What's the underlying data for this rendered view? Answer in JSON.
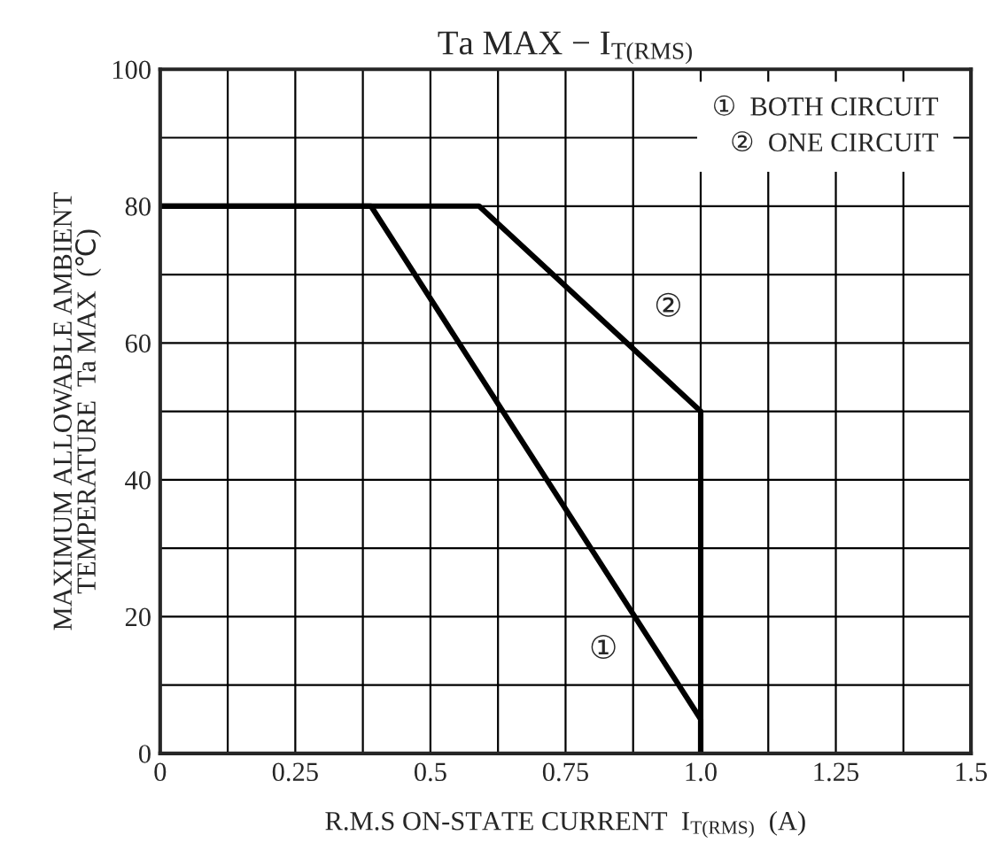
{
  "chart_data": {
    "type": "line",
    "title": "Ta MAX − I$_{T(RMS)}$",
    "xlabel": "R.M.S ON-STATE CURRENT  I$_{T(RMS)}$  (A)",
    "ylabel": "MAXIMUM ALLOWABLE AMBIENT\nTEMPERATURE  Ta MAX  (℃)",
    "series": [
      {
        "color": "#000000",
        "x": [
          0,
          0.39,
          1.0,
          1.0
        ],
        "values": [
          80,
          80,
          5,
          0
        ]
      },
      {
        "color": "#000000",
        "x": [
          0,
          0.59,
          1.0,
          1.0
        ],
        "values": [
          80,
          80,
          50,
          0
        ]
      }
    ],
    "annotations": [
      {
        "text": "①",
        "x": 0.82,
        "y": 15
      },
      {
        "text": "②",
        "x": 0.94,
        "y": 65
      },
      "①  BOTH CIRCUIT\n②  ONE CIRCUIT"
    ],
    "xlim": [
      0,
      1.5
    ],
    "ylim": [
      0,
      100
    ],
    "xticks": [
      0,
      {
        "value": 0.125,
        "label": null
      },
      0.25,
      {
        "value": 0.375,
        "label": null
      },
      0.5,
      {
        "value": 0.625,
        "label": null
      },
      0.75,
      {
        "value": 0.875,
        "label": null
      },
      {
        "value": 1.0,
        "label": "1.0"
      },
      {
        "value": 1.125,
        "label": null
      },
      1.25,
      {
        "value": 1.375,
        "label": null
      },
      1.5
    ],
    "yticks": [
      0,
      {
        "value": 10,
        "label": null
      },
      20,
      {
        "value": 30,
        "label": null
      },
      40,
      {
        "value": 50,
        "label": null
      },
      60,
      {
        "value": 70,
        "label": null
      },
      80,
      {
        "value": 90,
        "label": null
      },
      100
    ],
    "grid": true,
    "marker": "none",
    "line_style": "solid"
  }
}
